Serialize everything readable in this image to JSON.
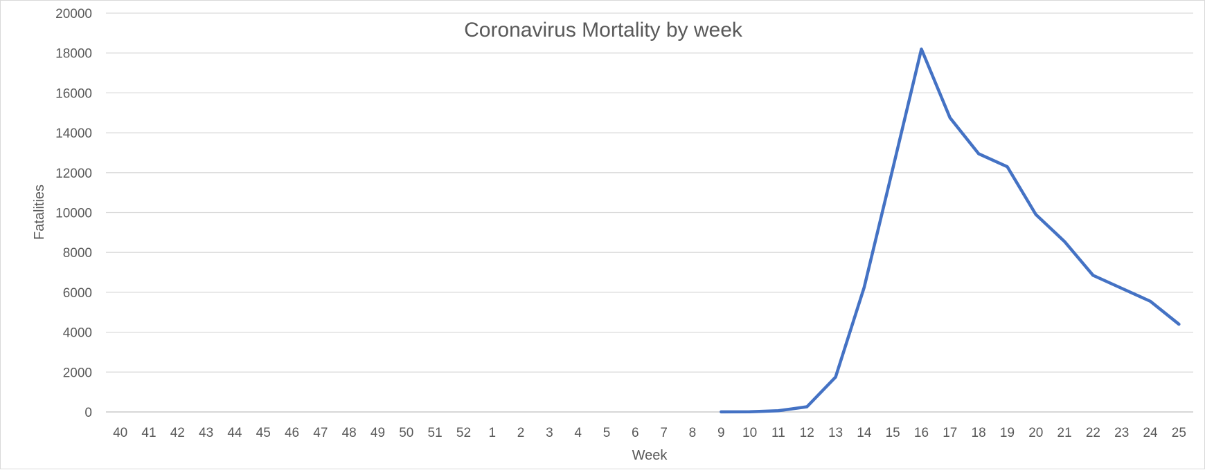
{
  "colors": {
    "series": "#4472c4",
    "text": "#595959",
    "grid": "#d9d9d9"
  },
  "chart_data": {
    "type": "line",
    "title": "Coronavirus Mortality by week",
    "xlabel": "Week",
    "ylabel": "Fatalities",
    "ylim": [
      0,
      20000
    ],
    "yticks": [
      0,
      2000,
      4000,
      6000,
      8000,
      10000,
      12000,
      14000,
      16000,
      18000,
      20000
    ],
    "grid": true,
    "legend": "none",
    "categories": [
      "40",
      "41",
      "42",
      "43",
      "44",
      "45",
      "46",
      "47",
      "48",
      "49",
      "50",
      "51",
      "52",
      "1",
      "2",
      "3",
      "4",
      "5",
      "6",
      "7",
      "8",
      "9",
      "10",
      "11",
      "12",
      "13",
      "14",
      "15",
      "16",
      "17",
      "18",
      "19",
      "20",
      "21",
      "22",
      "23",
      "24",
      "25"
    ],
    "series": [
      {
        "name": "Fatalities",
        "values": [
          null,
          null,
          null,
          null,
          null,
          null,
          null,
          null,
          null,
          null,
          null,
          null,
          null,
          null,
          null,
          null,
          null,
          null,
          null,
          null,
          null,
          5,
          10,
          60,
          260,
          1750,
          6250,
          12200,
          18200,
          14750,
          12950,
          12300,
          9900,
          8550,
          6850,
          6200,
          5550,
          4400
        ]
      }
    ]
  }
}
